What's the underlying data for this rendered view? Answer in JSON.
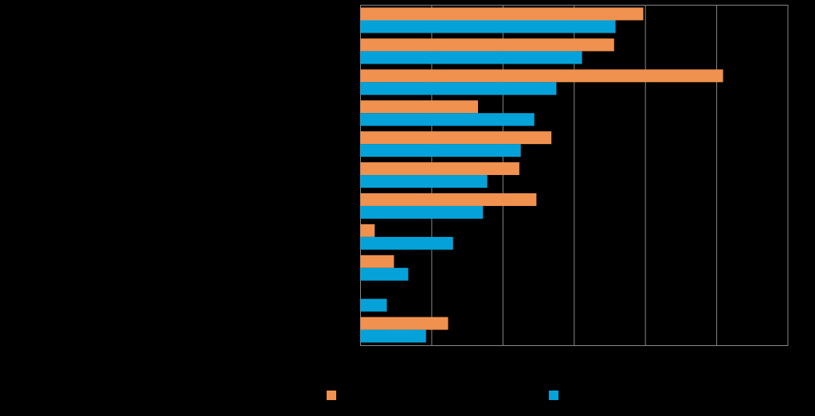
{
  "chart_data": {
    "type": "bar",
    "orientation": "horizontal",
    "categories": [
      null,
      null,
      null,
      null,
      null,
      null,
      null,
      null,
      null,
      null,
      null
    ],
    "series": [
      {
        "color": "#f0914f",
        "values": [
          3.97,
          3.56,
          5.09,
          1.65,
          2.68,
          2.23,
          2.47,
          0.2,
          0.47,
          null,
          1.23
        ]
      },
      {
        "color": "#05a2d9",
        "values": [
          3.58,
          3.11,
          2.75,
          2.44,
          2.25,
          1.78,
          1.72,
          1.3,
          0.67,
          0.37,
          0.92
        ]
      }
    ],
    "xlim": [
      0,
      6
    ],
    "xticks": [
      0,
      1,
      2,
      3,
      4,
      5,
      6
    ],
    "grid": true
  }
}
